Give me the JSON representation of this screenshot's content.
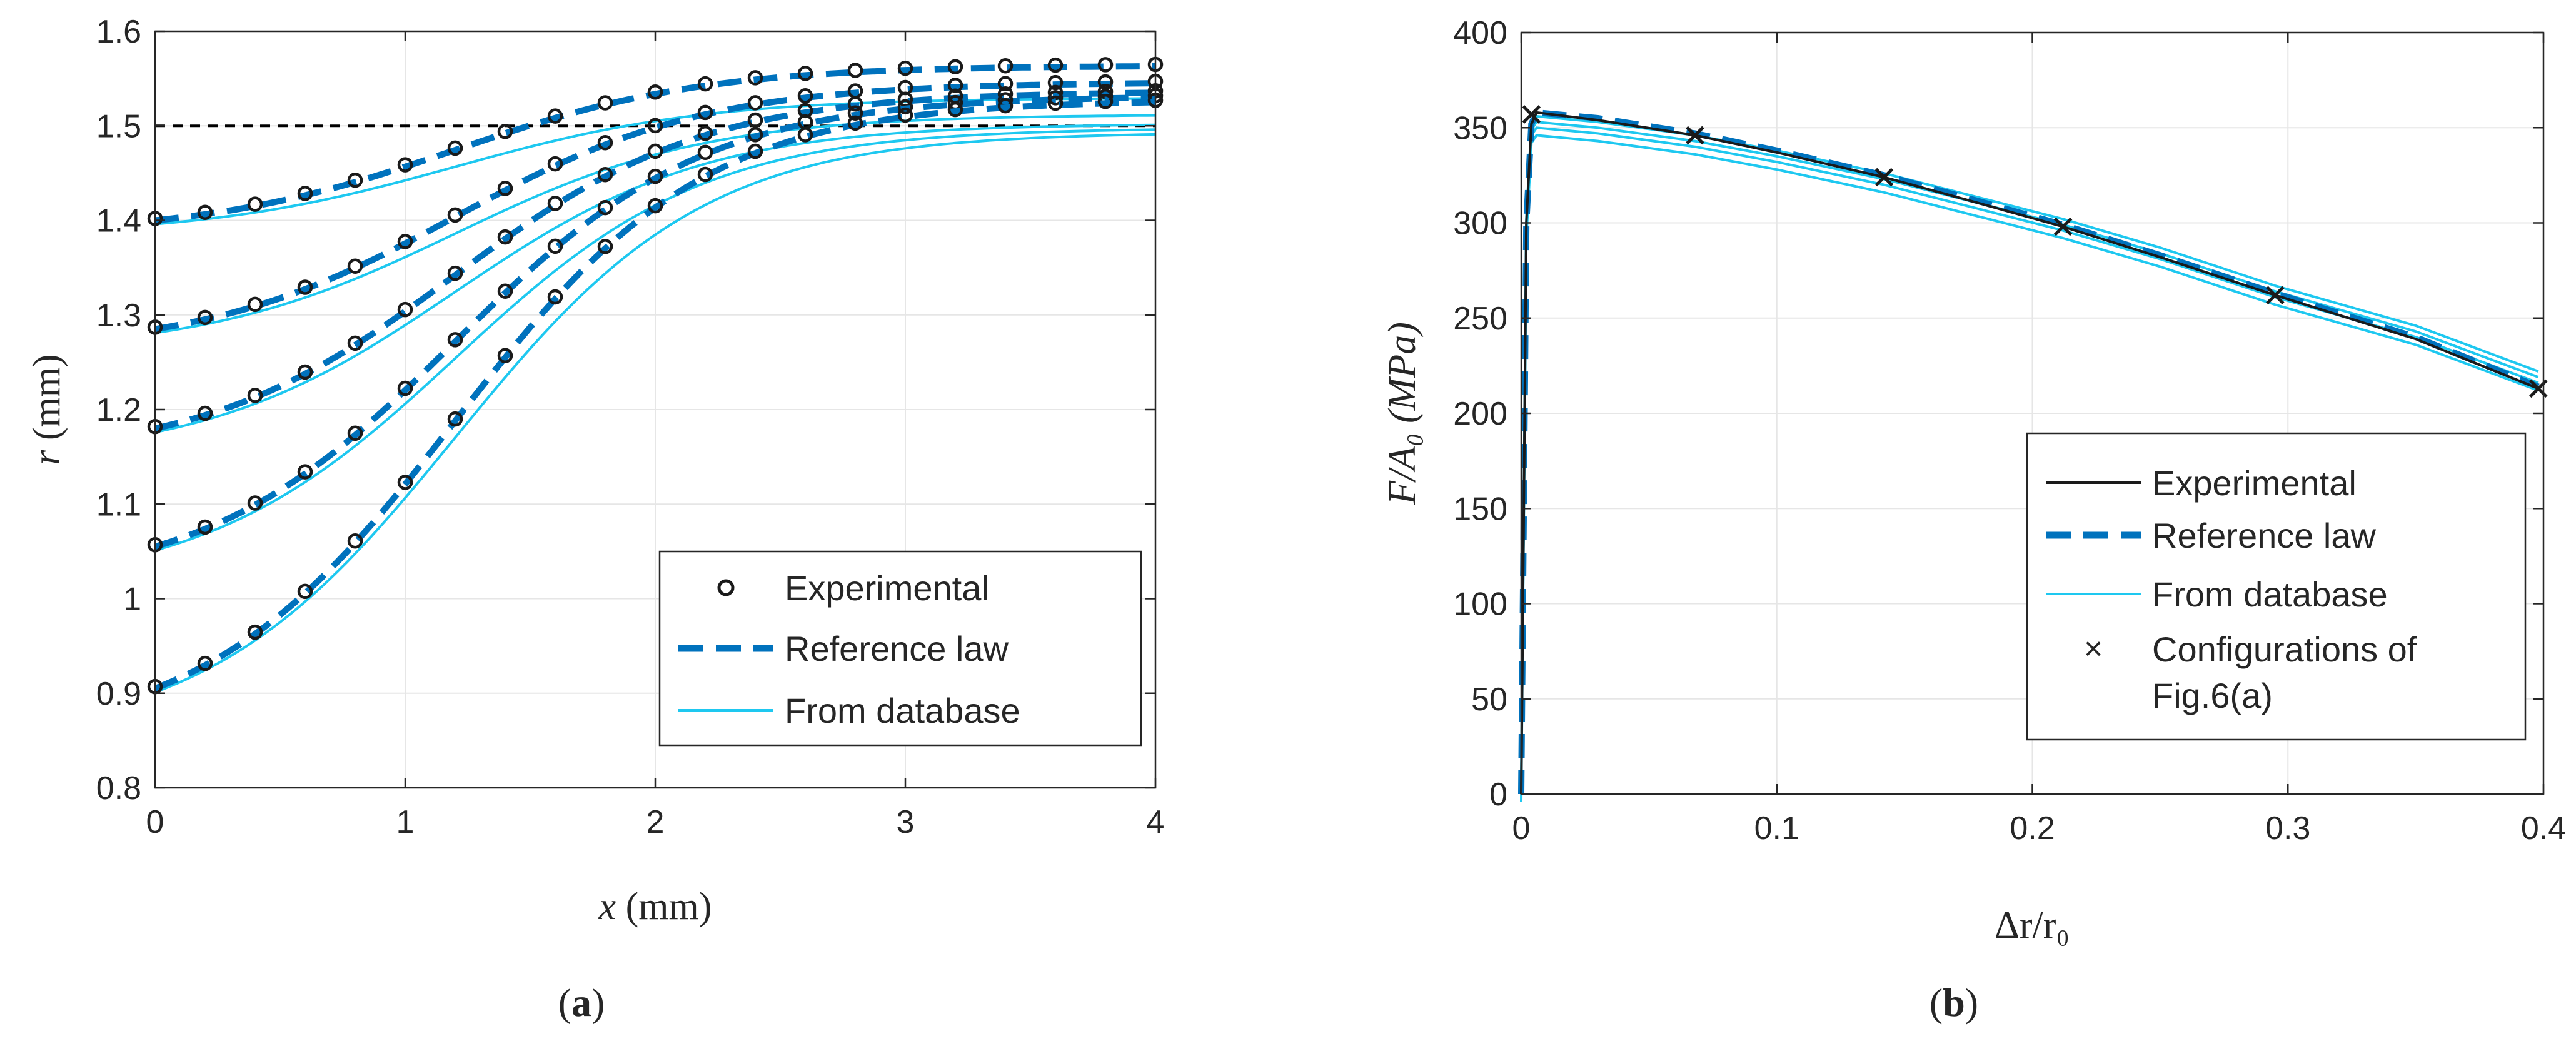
{
  "colors": {
    "experimental": "#1a1a1a",
    "reference": "#0072bd",
    "database": "#1ec8f0",
    "grid": "#e6e6e6",
    "axis": "#262626",
    "reference_line": "#000000"
  },
  "chart_data": [
    {
      "id": "a",
      "type": "line",
      "caption": {
        "open": "(",
        "letter": "a",
        "close": ")"
      },
      "xlabel": {
        "var": "x",
        "unit": " (mm)"
      },
      "ylabel": {
        "var": "r",
        "unit": " (mm)"
      },
      "xlim": [
        0,
        4
      ],
      "ylim": [
        0.8,
        1.6
      ],
      "xticks": [
        0,
        1,
        2,
        3,
        4
      ],
      "yticks": [
        0.8,
        0.9,
        1,
        1.1,
        1.2,
        1.3,
        1.4,
        1.5,
        1.6
      ],
      "xtick_labels": [
        "0",
        "1",
        "2",
        "3",
        "4"
      ],
      "ytick_labels": [
        "0.8",
        "0.9",
        "1",
        "1.1",
        "1.2",
        "1.3",
        "1.4",
        "1.5",
        "1.6"
      ],
      "grid": true,
      "reference_level": 1.5,
      "legend": {
        "position": "bottom-right",
        "entries": [
          "Experimental",
          "Reference law",
          "From database"
        ]
      },
      "profiles": [
        {
          "r0": 1.4,
          "r4": 1.563
        },
        {
          "r0": 1.285,
          "r4": 1.545
        },
        {
          "r0": 1.18,
          "r4": 1.535
        },
        {
          "r0": 1.055,
          "r4": 1.53
        },
        {
          "r0": 0.905,
          "r4": 1.525
        }
      ],
      "x_samples": [
        0,
        0.2,
        0.4,
        0.6,
        0.8,
        1,
        1.2,
        1.4,
        1.6,
        1.8,
        2,
        2.2,
        2.4,
        2.6,
        2.8,
        3,
        3.2,
        3.4,
        3.6,
        3.8,
        4
      ]
    },
    {
      "id": "b",
      "type": "line",
      "caption": {
        "open": "(",
        "letter": "b",
        "close": ")"
      },
      "xlabel": {
        "text": "Δr/r₀"
      },
      "ylabel": {
        "text": "F/A₀  (MPa)"
      },
      "xlim": [
        0,
        0.4
      ],
      "ylim": [
        0,
        400
      ],
      "xticks": [
        0,
        0.1,
        0.2,
        0.3,
        0.4
      ],
      "yticks": [
        0,
        50,
        100,
        150,
        200,
        250,
        300,
        350,
        400
      ],
      "xtick_labels": [
        "0",
        "0.1",
        "0.2",
        "0.3",
        "0.4"
      ],
      "ytick_labels": [
        "0",
        "50",
        "100",
        "150",
        "200",
        "250",
        "300",
        "350",
        "400"
      ],
      "grid": true,
      "legend": {
        "position": "right",
        "entries": [
          "Experimental",
          "Reference law",
          "From database",
          "Configurations of",
          "Fig.6(a)"
        ]
      },
      "series": [
        {
          "name": "Experimental",
          "x": [
            0,
            0.002,
            0.004,
            0.006,
            0.03,
            0.068,
            0.1,
            0.142,
            0.18,
            0.212,
            0.25,
            0.295,
            0.35,
            0.398
          ],
          "y": [
            0,
            300,
            352,
            358,
            354,
            346,
            337,
            324,
            310,
            298,
            282,
            262,
            239,
            213
          ]
        },
        {
          "name": "Reference law",
          "x": [
            0,
            0.002,
            0.004,
            0.006,
            0.03,
            0.068,
            0.1,
            0.142,
            0.18,
            0.212,
            0.25,
            0.295,
            0.35,
            0.398
          ],
          "y": [
            0,
            300,
            352,
            358,
            355,
            347,
            338,
            325,
            311,
            299,
            283,
            263,
            240,
            214
          ]
        },
        {
          "name": "From database",
          "x": [
            0,
            0.002,
            0.004,
            0.006,
            0.03,
            0.068,
            0.1,
            0.142,
            0.18,
            0.212,
            0.25,
            0.295,
            0.35,
            0.398
          ],
          "y": [
            0,
            296,
            346,
            350,
            347,
            340,
            332,
            320,
            307,
            296,
            281,
            261,
            240,
            216
          ]
        }
      ],
      "database_offsets": [
        0,
        3,
        -4,
        6
      ],
      "configurations": {
        "x": [
          0.004,
          0.068,
          0.142,
          0.212,
          0.295,
          0.398
        ],
        "y": [
          357,
          346,
          324,
          298,
          262,
          213
        ]
      }
    }
  ]
}
